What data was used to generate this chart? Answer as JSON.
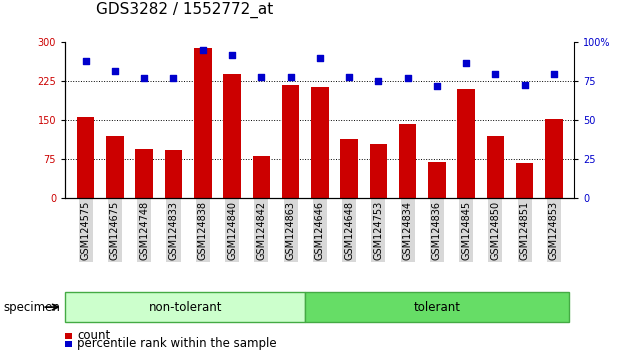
{
  "title": "GDS3282 / 1552772_at",
  "categories": [
    "GSM124575",
    "GSM124675",
    "GSM124748",
    "GSM124833",
    "GSM124838",
    "GSM124840",
    "GSM124842",
    "GSM124863",
    "GSM124646",
    "GSM124648",
    "GSM124753",
    "GSM124834",
    "GSM124836",
    "GSM124845",
    "GSM124850",
    "GSM124851",
    "GSM124853"
  ],
  "bar_values": [
    157,
    120,
    95,
    92,
    290,
    240,
    82,
    218,
    215,
    115,
    105,
    143,
    70,
    210,
    120,
    68,
    152
  ],
  "dot_values": [
    88,
    82,
    77,
    77,
    95,
    92,
    78,
    78,
    90,
    78,
    75,
    77,
    72,
    87,
    80,
    73,
    80
  ],
  "bar_color": "#cc0000",
  "dot_color": "#0000cc",
  "left_axis_color": "#cc0000",
  "right_axis_color": "#0000cc",
  "ylim_left": [
    0,
    300
  ],
  "ylim_right": [
    0,
    100
  ],
  "yticks_left": [
    0,
    75,
    150,
    225,
    300
  ],
  "yticks_right": [
    0,
    25,
    50,
    75,
    100
  ],
  "group1_label": "non-tolerant",
  "group2_label": "tolerant",
  "group1_count": 8,
  "group2_count": 9,
  "group1_color": "#ccffcc",
  "group2_color": "#66dd66",
  "specimen_label": "specimen",
  "legend_bar_label": "count",
  "legend_dot_label": "percentile rank within the sample",
  "title_fontsize": 11,
  "tick_fontsize": 7,
  "label_fontsize": 8.5,
  "background_color": "#ffffff"
}
